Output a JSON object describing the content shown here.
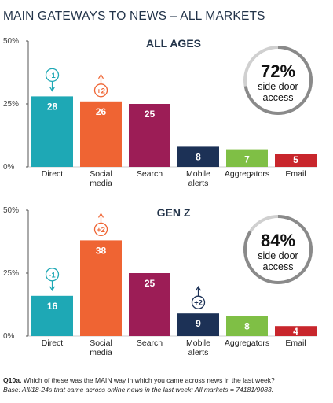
{
  "title": "MAIN GATEWAYS TO NEWS – ALL MARKETS",
  "footnote": {
    "question_id": "Q10a.",
    "question": "Which of these was the MAIN way in which you came across news in the last week?",
    "base": "Base: All/18-24s that came across online news in the last week: All markets = 74181/9083."
  },
  "colors": {
    "direct": "#1ea8b5",
    "social": "#ef6433",
    "search": "#9c1d56",
    "mobile": "#1c3156",
    "aggregators": "#7fbf45",
    "email": "#c8262c"
  },
  "chart_data": [
    {
      "type": "bar",
      "title": "ALL AGES",
      "categories": [
        "Direct",
        "Social\nmedia",
        "Search",
        "Mobile\nalerts",
        "Aggregators",
        "Email"
      ],
      "values": [
        28,
        26,
        25,
        8,
        7,
        5
      ],
      "ylim": [
        0,
        50
      ],
      "yticks": [
        "0%",
        "25%",
        "50%"
      ],
      "changes": [
        {
          "category": "Direct",
          "label": "-1",
          "direction": "down",
          "color": "#1ea8b5"
        },
        {
          "category": "Social media",
          "label": "+2",
          "direction": "up",
          "color": "#ef6433"
        }
      ],
      "callout": {
        "value": "72%",
        "line1": "side door",
        "line2": "access",
        "fill": 0.72
      }
    },
    {
      "type": "bar",
      "title": "GEN Z",
      "categories": [
        "Direct",
        "Social\nmedia",
        "Search",
        "Mobile\nalerts",
        "Aggregators",
        "Email"
      ],
      "values": [
        16,
        38,
        25,
        9,
        8,
        4
      ],
      "ylim": [
        0,
        50
      ],
      "yticks": [
        "0%",
        "25%",
        "50%"
      ],
      "changes": [
        {
          "category": "Direct",
          "label": "-1",
          "direction": "down",
          "color": "#1ea8b5"
        },
        {
          "category": "Social media",
          "label": "+2",
          "direction": "up",
          "color": "#ef6433"
        },
        {
          "category": "Mobile alerts",
          "label": "+2",
          "direction": "up",
          "color": "#1c3156"
        }
      ],
      "callout": {
        "value": "84%",
        "line1": "side door",
        "line2": "access",
        "fill": 0.84
      }
    }
  ]
}
